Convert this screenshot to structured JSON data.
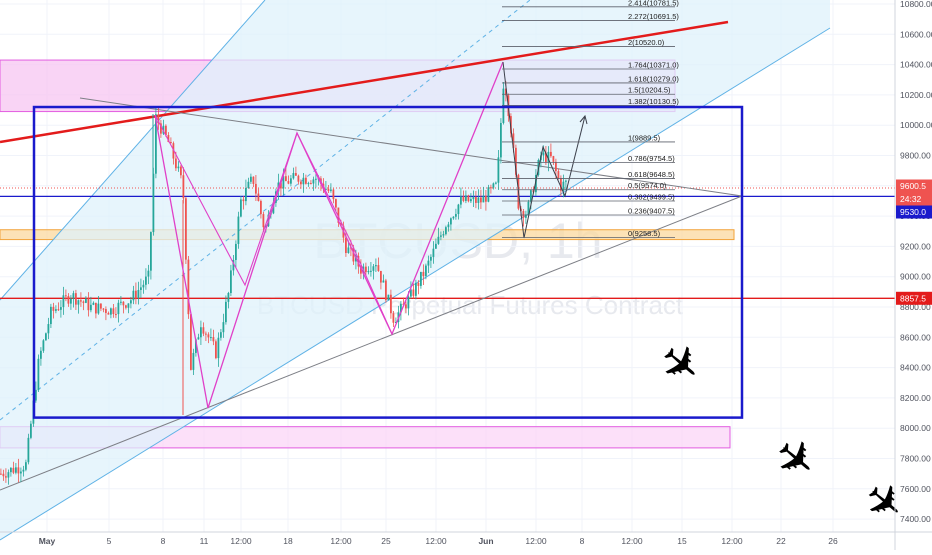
{
  "chart_data": {
    "type": "candlestick",
    "watermark": {
      "symbol": "BTCUSD, 1h",
      "description": "BTCUSD Perpetual Futures Contract"
    },
    "x_ticks": [
      "May",
      "5",
      "8",
      "11",
      "12:00",
      "18",
      "12:00",
      "25",
      "12:00",
      "Jun",
      "12:00",
      "8",
      "12:00",
      "15",
      "12:00",
      "22",
      "26"
    ],
    "y_ticks": [
      10800,
      10600,
      10400,
      10200,
      10000,
      9800,
      9600,
      9400,
      9200,
      9000,
      8800,
      8600,
      8400,
      8200,
      8000,
      7800,
      7600,
      7400
    ],
    "ylim": [
      7320,
      10860
    ],
    "price_labels": [
      {
        "name": "last-price",
        "text": "9600.5",
        "value": 9600.5,
        "color": "#ef5350"
      },
      {
        "name": "countdown",
        "text": "24:32",
        "value": 9553,
        "color": "#ef5350"
      },
      {
        "name": "blue-line",
        "text": "9530.0",
        "value": 9530.0,
        "color": "#1a1acc"
      },
      {
        "name": "red-line",
        "text": "8857.5",
        "value": 8857.5,
        "color": "#e31b1b"
      }
    ],
    "fib_levels": [
      {
        "ratio": "2.414",
        "price": 10781.5,
        "label": "2.414(10781.5)"
      },
      {
        "ratio": "2.272",
        "price": 10691.5,
        "label": "2.272(10691.5)"
      },
      {
        "ratio": "2",
        "price": 10520.0,
        "label": "2(10520.0)"
      },
      {
        "ratio": "1.764",
        "price": 10371.0,
        "label": "1.764(10371.0)"
      },
      {
        "ratio": "1.618",
        "price": 10279.0,
        "label": "1.618(10279.0)"
      },
      {
        "ratio": "1.5",
        "price": 10204.5,
        "label": "1.5(10204.5)"
      },
      {
        "ratio": "1.382",
        "price": 10130.5,
        "label": "1.382(10130.5)"
      },
      {
        "ratio": "1",
        "price": 9889.5,
        "label": "1(9889.5)"
      },
      {
        "ratio": "0.786",
        "price": 9754.5,
        "label": "0.786(9754.5)"
      },
      {
        "ratio": "0.618",
        "price": 9648.5,
        "label": "0.618(9648.5)"
      },
      {
        "ratio": "0.5",
        "price": 9574.0,
        "label": "0.5(9574.0)"
      },
      {
        "ratio": "0.382",
        "price": 9499.5,
        "label": "0.382(9499.5)"
      },
      {
        "ratio": "0.236",
        "price": 9407.5,
        "label": "0.236(9407.5)"
      },
      {
        "ratio": "0",
        "price": 9258.5,
        "label": "0(9258.5)"
      }
    ],
    "horizontal_lines": [
      {
        "price": 9530.0,
        "color": "#1a1acc"
      },
      {
        "price": 8857.5,
        "color": "#e31b1b"
      },
      {
        "price": 9600.5,
        "color": "#ef5350",
        "dotted": true
      }
    ],
    "zones": [
      {
        "name": "upper-magenta-zone",
        "from": 10090,
        "to": 10430,
        "color": "#f7c6f2"
      },
      {
        "name": "lower-magenta-zone",
        "from": 7870,
        "to": 8010,
        "color": "#fbd6f7"
      },
      {
        "name": "orange-zone",
        "from": 9245,
        "to": 9310,
        "color": "#fbd89e"
      }
    ],
    "box": {
      "from": 8070,
      "to": 10120,
      "color": "#1a1acc"
    },
    "colors": {
      "up": "#26a69a",
      "down": "#ef5350",
      "channel": "#dff1fb",
      "pattern": "#e040c8"
    }
  }
}
